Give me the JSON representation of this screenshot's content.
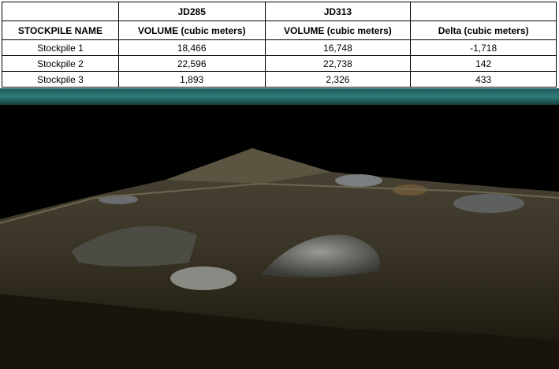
{
  "table": {
    "group_headers": [
      "JD285",
      "JD313"
    ],
    "columns": [
      "STOCKPILE NAME",
      "VOLUME (cubic meters)",
      "VOLUME (cubic meters)",
      "Delta (cubic meters)"
    ],
    "rows": [
      [
        "Stockpile 1",
        "18,466",
        "16,748",
        "-1,718"
      ],
      [
        "Stockpile 2",
        "22,596",
        "22,738",
        "142"
      ],
      [
        "Stockpile 3",
        "1,893",
        "2,326",
        "433"
      ]
    ]
  }
}
